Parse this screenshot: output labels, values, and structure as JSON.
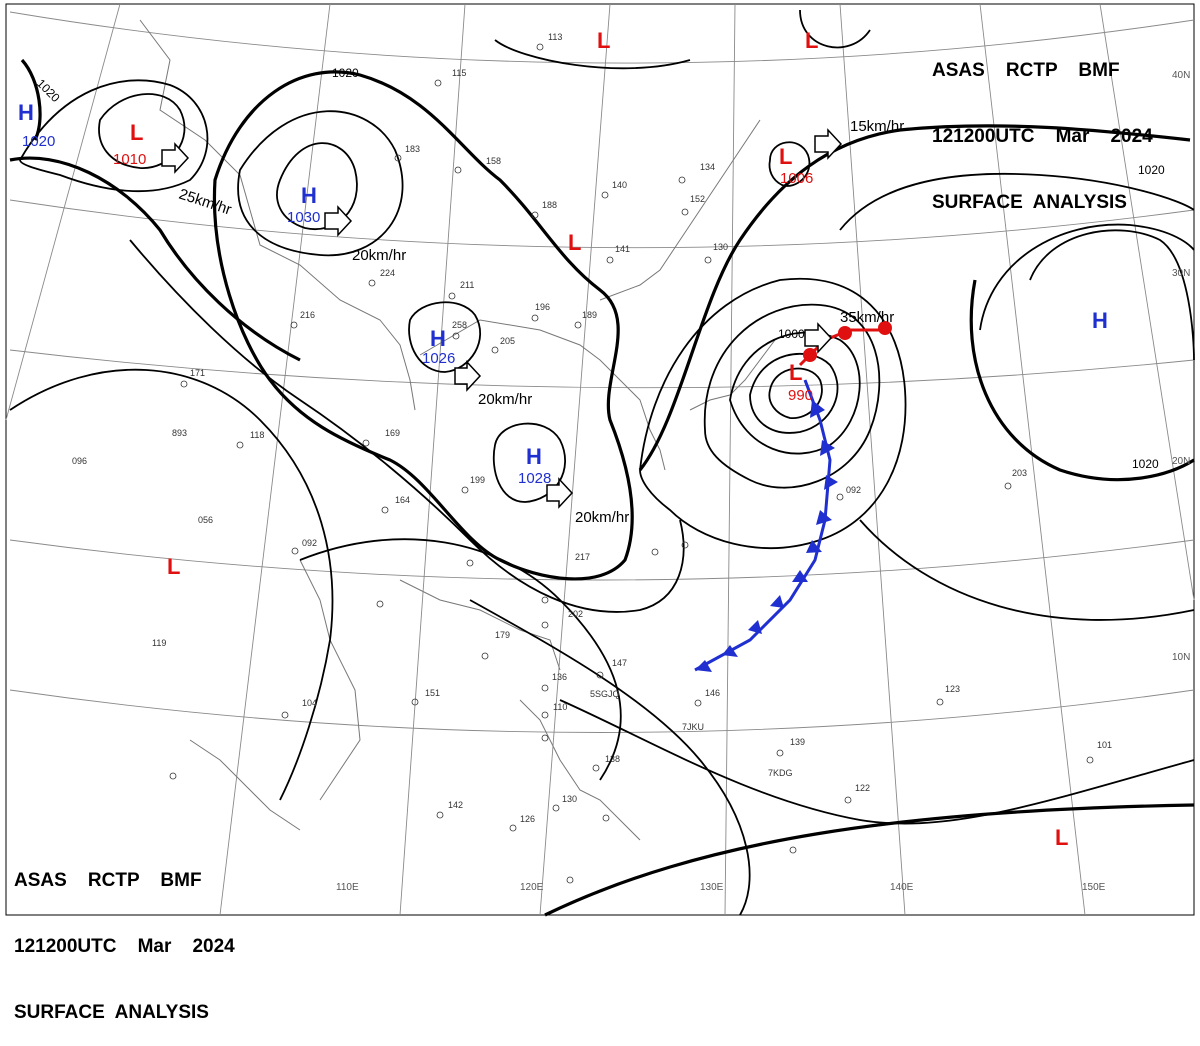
{
  "header_top": {
    "line1": "ASAS    RCTP    BMF",
    "line2": "121200UTC    Mar    2024",
    "line3": "SURFACE  ANALYSIS"
  },
  "header_bottom": {
    "line1": "ASAS    RCTP    BMF",
    "line2": "121200UTC    Mar    2024",
    "line3": "SURFACE  ANALYSIS"
  },
  "longitude_labels": [
    "110E",
    "120E",
    "130E",
    "140E",
    "150E"
  ],
  "latitude_labels": [
    "40N",
    "30N",
    "20N",
    "10N"
  ],
  "pressure_centers": [
    {
      "type": "H",
      "value": "1020"
    },
    {
      "type": "L",
      "value": "1010"
    },
    {
      "type": "H",
      "value": "1030"
    },
    {
      "type": "H",
      "value": "1026"
    },
    {
      "type": "H",
      "value": "1028"
    },
    {
      "type": "L",
      "value": "1006"
    },
    {
      "type": "L",
      "value": "990"
    },
    {
      "type": "H",
      "value": ""
    },
    {
      "type": "L",
      "value": ""
    },
    {
      "type": "L",
      "value": ""
    },
    {
      "type": "L",
      "value": ""
    },
    {
      "type": "L",
      "value": ""
    }
  ],
  "movement_labels": [
    "25km/hr",
    "20km/hr",
    "20km/hr",
    "20km/hr",
    "35km/hr",
    "15km/hr"
  ],
  "isobar_labels": [
    "1020",
    "1020",
    "1000",
    "1020",
    "1020"
  ],
  "station_numbers": [
    "115",
    "113",
    "183",
    "158",
    "188",
    "140",
    "152",
    "134",
    "130",
    "141",
    "196",
    "189",
    "211",
    "205",
    "258",
    "224",
    "216",
    "171",
    "118",
    "169",
    "164",
    "199",
    "092",
    "056",
    "096",
    "893",
    "119",
    "104",
    "151",
    "179",
    "202",
    "217",
    "147",
    "136",
    "110",
    "138",
    "130",
    "142",
    "126",
    "146",
    "139",
    "123",
    "101",
    "122",
    "203",
    "092"
  ],
  "station_codes": [
    "7JKU",
    "7KDG",
    "5SGJQ"
  ],
  "colors": {
    "high": "#1f2fd0",
    "low": "#e01010",
    "cold_front": "#1f2fd0",
    "warm_front": "#e01010",
    "isobar": "#000000",
    "grid": "#8a8a8a"
  },
  "icons": [
    "movement-arrow-icon",
    "station-model-icon",
    "cold-front-triangle-icon",
    "warm-front-semicircle-icon"
  ]
}
